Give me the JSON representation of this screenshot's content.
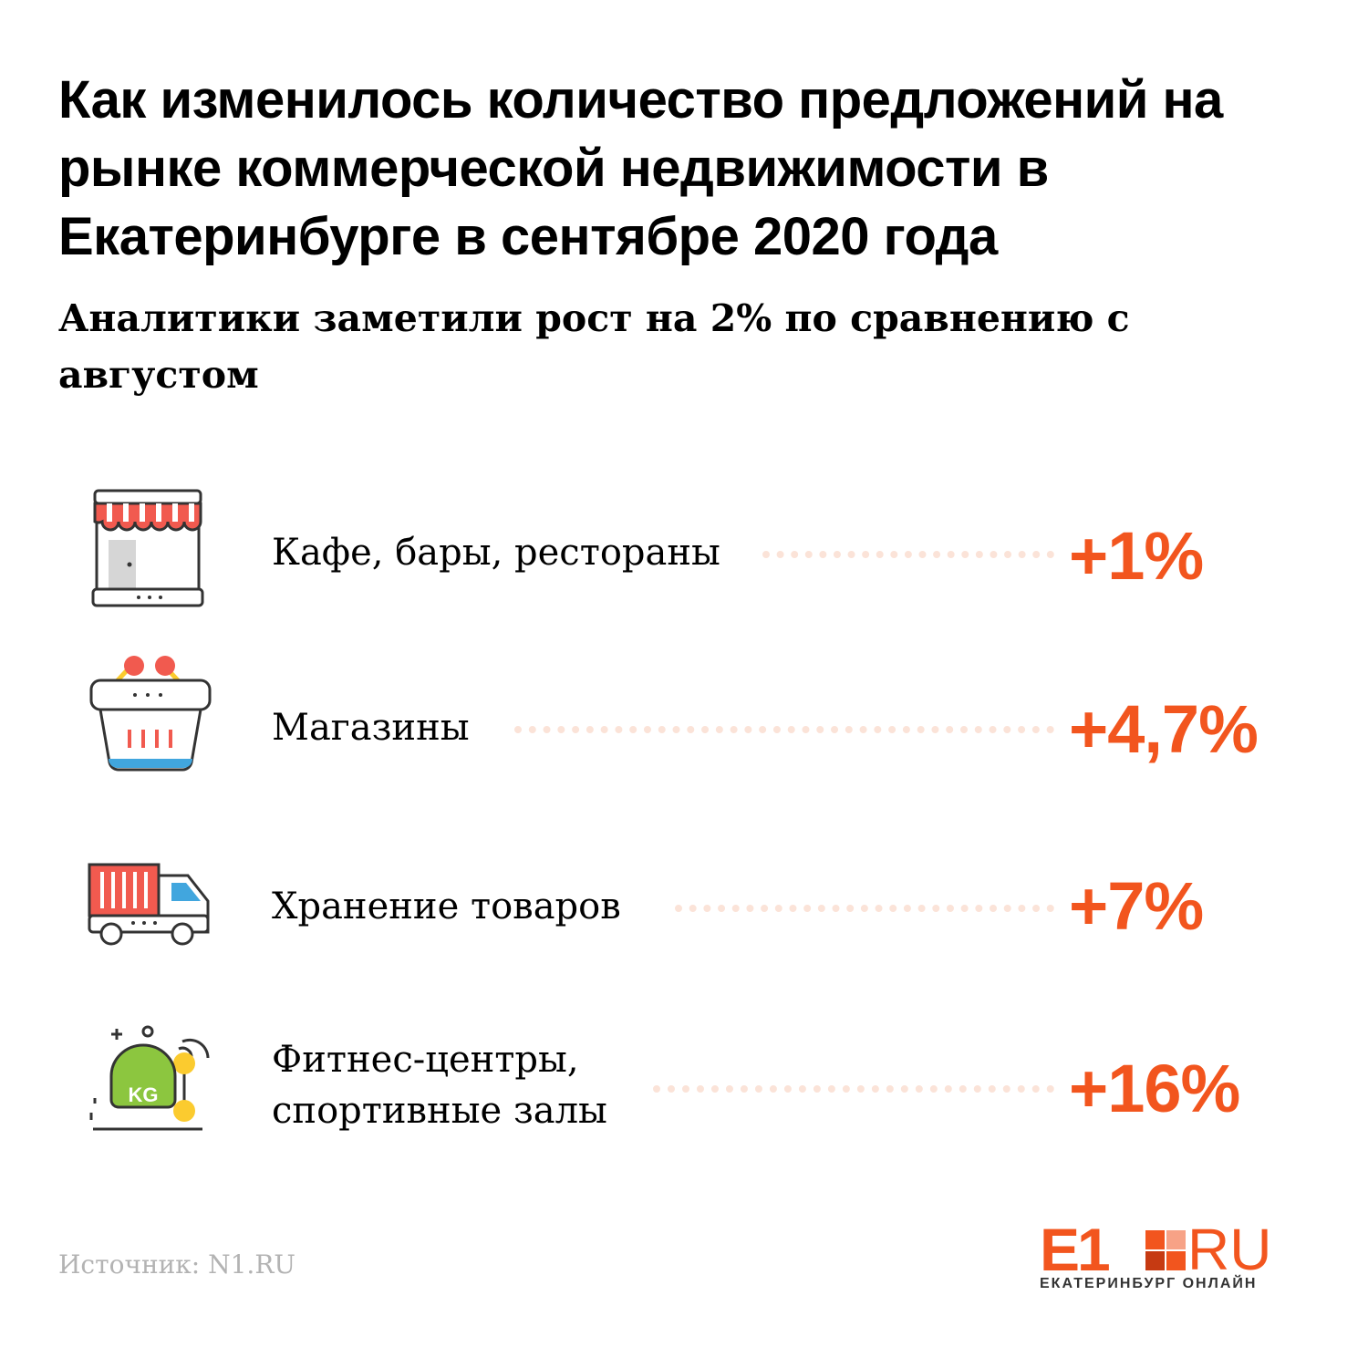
{
  "header": {
    "title": "Как изменилось количество предложений на рынке коммерческой недвижимости в Екатеринбурге в сентябре 2020 года",
    "subtitle": "Аналитики заметили рост на 2% по сравнению с августом"
  },
  "items": [
    {
      "icon": "storefront-icon",
      "label": "Кафе, бары, рестораны",
      "value": "+1%"
    },
    {
      "icon": "shopping-basket-icon",
      "label": "Магазины",
      "value": "+4,7%"
    },
    {
      "icon": "delivery-truck-icon",
      "label": "Хранение товаров",
      "value": "+7%"
    },
    {
      "icon": "kettlebell-icon",
      "label": [
        "Фитнес-центры,",
        "спортивные залы"
      ],
      "value": "+16%"
    }
  ],
  "footer": {
    "source": "Источник: N1.RU",
    "logo_left": "E1",
    "logo_right": "RU",
    "logo_tagline": "ЕКАТЕРИНБУРГ ОНЛАЙН"
  },
  "colors": {
    "accent": "#f2551e",
    "dots": "#fbe3d8",
    "source_text": "#b3b3b3",
    "icon_red": "#f15a4f",
    "icon_green": "#8cc63f",
    "icon_yellow": "#fbcb2f",
    "icon_blue": "#41a6de"
  }
}
